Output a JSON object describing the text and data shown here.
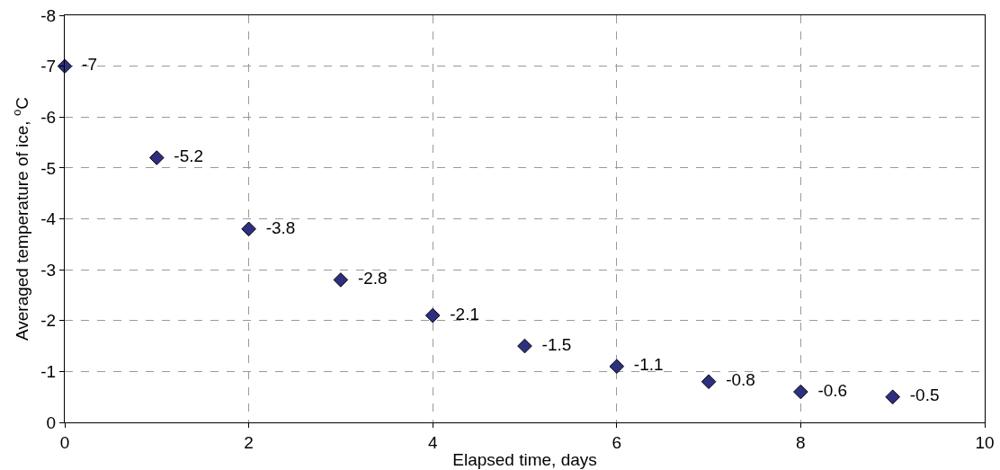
{
  "chart_data": {
    "type": "scatter",
    "xlabel": "Elapsed time, days",
    "ylabel": "Averaged temperature of ice, $^{o}$C",
    "x": [
      0,
      1,
      2,
      3,
      4,
      5,
      6,
      7,
      8,
      9
    ],
    "values": [
      -7,
      -5.2,
      -3.8,
      -2.8,
      -2.1,
      -1.5,
      -1.1,
      -0.8,
      -0.6,
      -0.5
    ],
    "color": "#2f2f7f",
    "marker": "diamond",
    "data_labels": true,
    "xlim": [
      0,
      10
    ],
    "xticks": [
      0,
      2,
      4,
      6,
      8,
      10
    ],
    "ylim": [
      0,
      -8
    ],
    "yticks": [
      0,
      -1,
      -2,
      -3,
      -4,
      -5,
      -6,
      -7,
      -8
    ],
    "grid": true
  }
}
